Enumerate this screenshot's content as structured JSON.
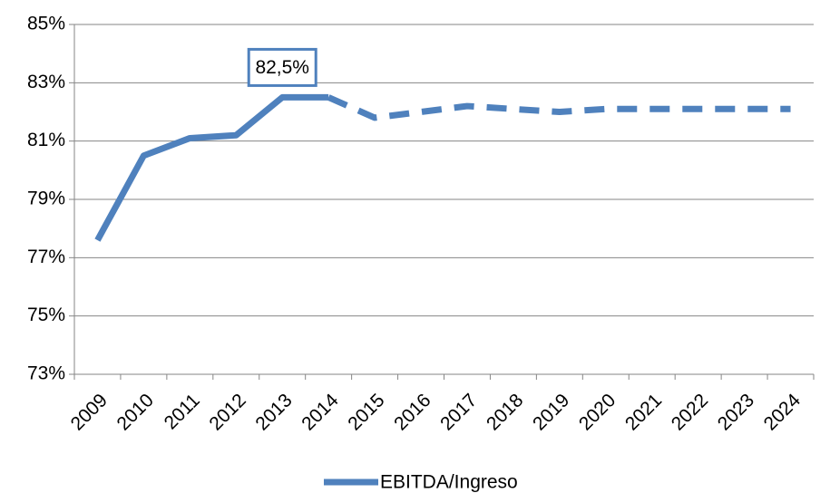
{
  "chart_data": {
    "type": "line",
    "categories": [
      "2009",
      "2010",
      "2011",
      "2012",
      "2013",
      "2014",
      "2015",
      "2016",
      "2017",
      "2018",
      "2019",
      "2020",
      "2021",
      "2022",
      "2023",
      "2024"
    ],
    "series": [
      {
        "name": "EBITDA/Ingreso",
        "color": "#4f81bd",
        "values": [
          77.6,
          80.5,
          81.1,
          81.2,
          82.5,
          82.5,
          81.8,
          82.0,
          82.2,
          82.1,
          82.0,
          82.1,
          82.1,
          82.1,
          82.1,
          82.1
        ],
        "value_labels": [
          null,
          null,
          null,
          null,
          "82,5%",
          null,
          null,
          null,
          null,
          null,
          null,
          null,
          null,
          null,
          null,
          null
        ],
        "dashed_from": "2014"
      }
    ],
    "ylim": [
      73,
      85
    ],
    "yticks": [
      {
        "value": 73,
        "label": "73%"
      },
      {
        "value": 75,
        "label": "75%"
      },
      {
        "value": 77,
        "label": "77%"
      },
      {
        "value": 79,
        "label": "79%"
      },
      {
        "value": 81,
        "label": "81%"
      },
      {
        "value": 83,
        "label": "83%"
      },
      {
        "value": 85,
        "label": "85%"
      }
    ],
    "grid": true,
    "legend": "bottom"
  }
}
